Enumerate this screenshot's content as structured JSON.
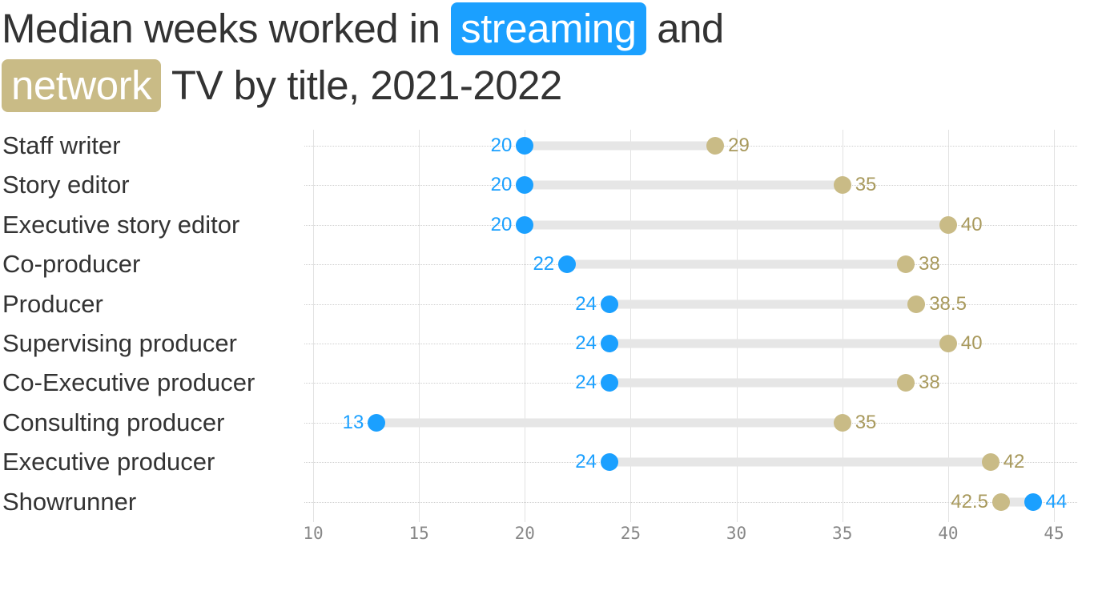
{
  "title": {
    "line1_before": "Median weeks worked in ",
    "streaming_label": "streaming",
    "line1_after": " and",
    "network_label": "network",
    "line2_after": " TV by title, 2021-2022"
  },
  "colors": {
    "streaming": "#1ba0ff",
    "network": "#c9bb86",
    "network_text": "#a8995c",
    "bar": "#e6e6e6"
  },
  "chart_data": {
    "type": "dumbbell",
    "title": "Median weeks worked in streaming and network TV by title, 2021-2022",
    "xlabel": "",
    "ylabel": "",
    "xlim": [
      10,
      45
    ],
    "x_ticks": [
      "10",
      "15",
      "20",
      "25",
      "30",
      "35",
      "40",
      "45"
    ],
    "grid": true,
    "legend": "inline in title (streaming = blue, network = tan)",
    "categories": [
      "Staff writer",
      "Story editor",
      "Executive story editor",
      "Co-producer",
      "Producer",
      "Supervising producer",
      "Co-Executive producer",
      "Consulting producer",
      "Executive producer",
      "Showrunner"
    ],
    "series": [
      {
        "name": "streaming",
        "values": [
          20,
          20,
          20,
          22,
          24,
          24,
          24,
          13,
          24,
          44
        ]
      },
      {
        "name": "network",
        "values": [
          29,
          35,
          40,
          38,
          38.5,
          40,
          38,
          35,
          42,
          42.5
        ]
      }
    ],
    "value_labels": {
      "streaming": [
        "20",
        "20",
        "20",
        "22",
        "24",
        "24",
        "24",
        "13",
        "24",
        "44"
      ],
      "network": [
        "29",
        "35",
        "40",
        "38",
        "38.5",
        "40",
        "38",
        "35",
        "42",
        "42.5"
      ]
    }
  }
}
